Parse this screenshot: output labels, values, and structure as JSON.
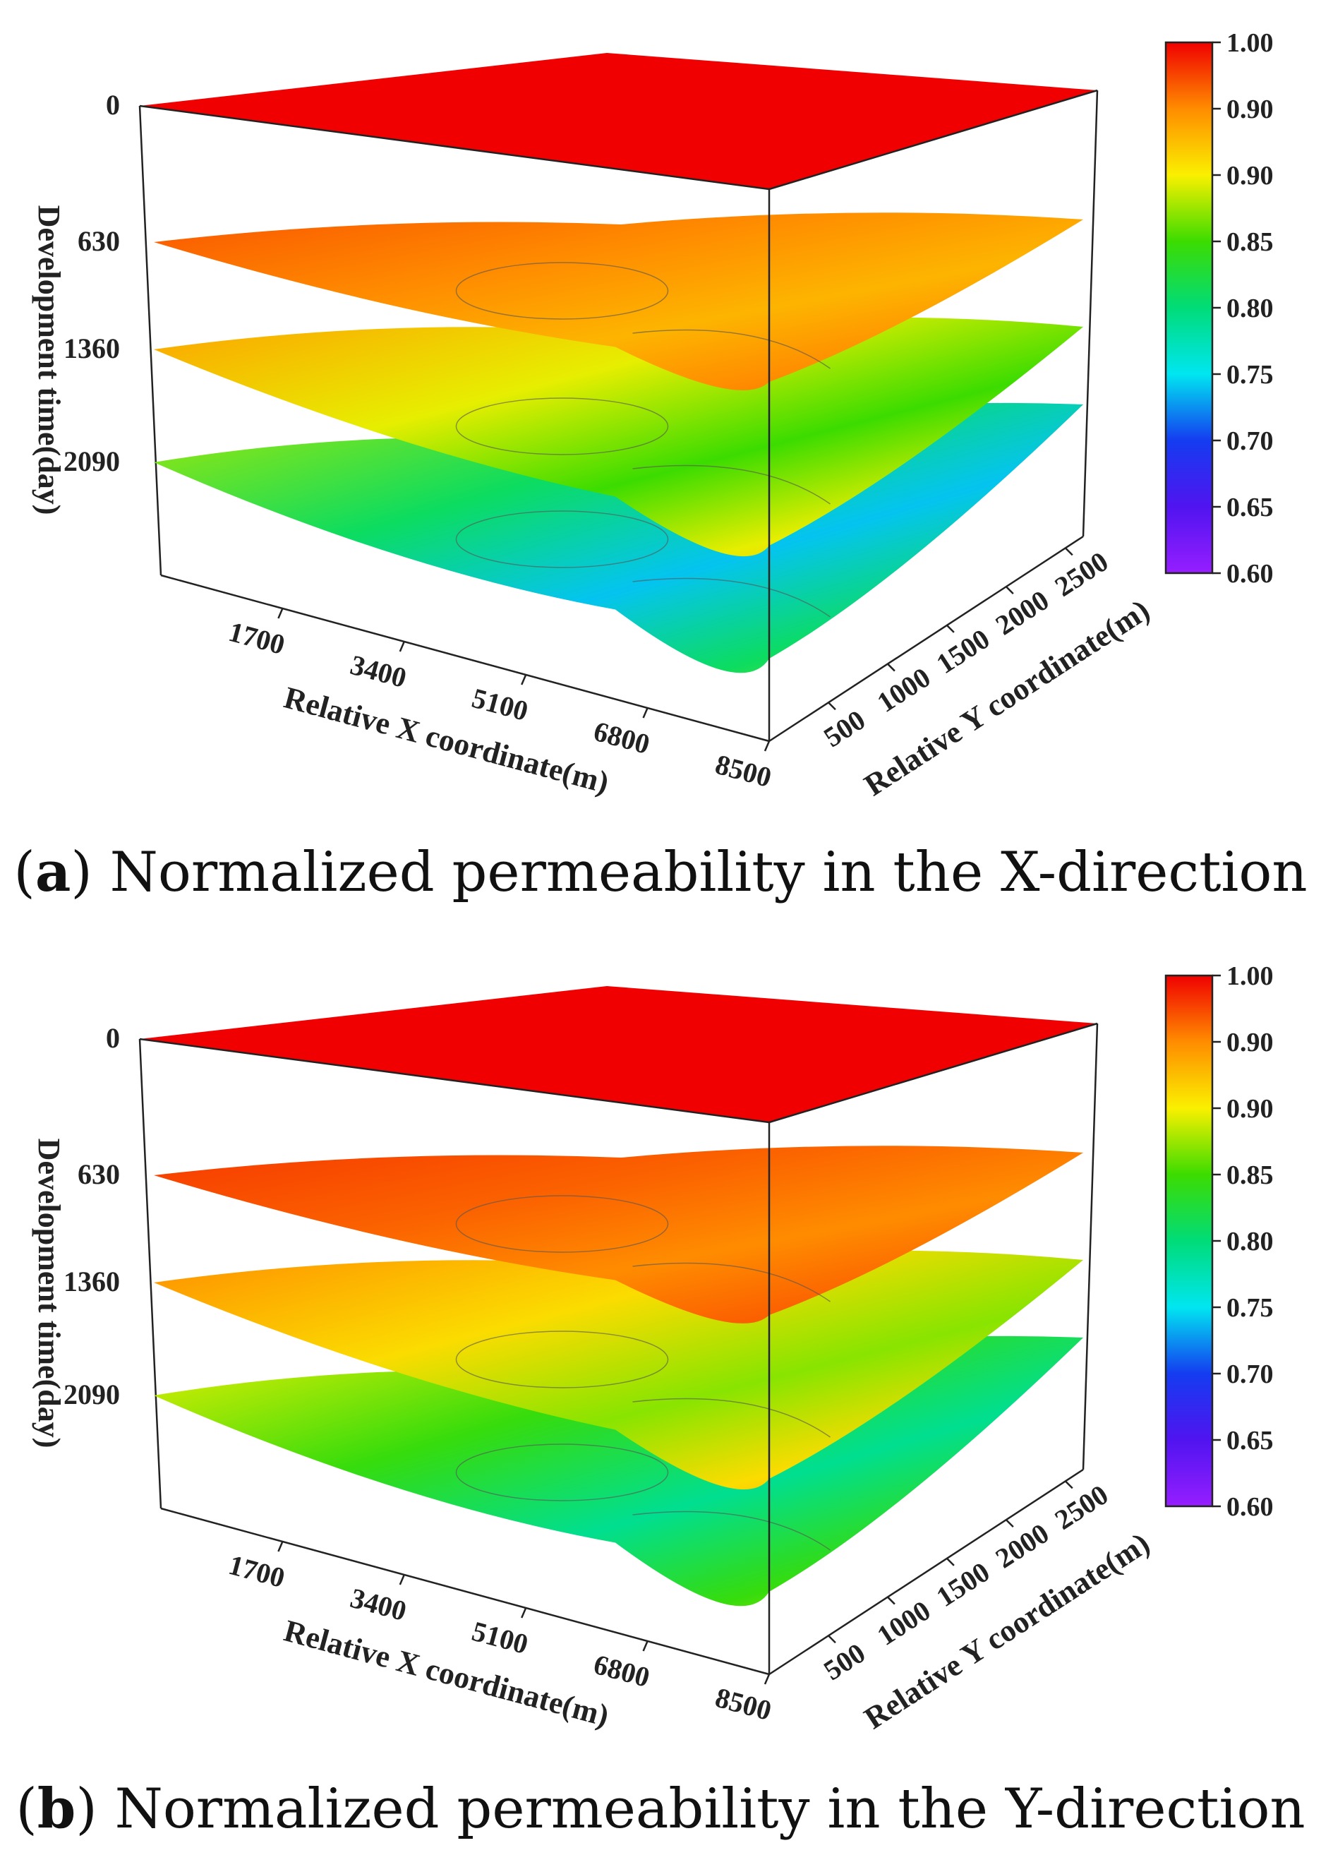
{
  "chart_data": [
    {
      "type": "surface",
      "panel_letter": "a",
      "caption": "Normalized permeability in the X-direction",
      "xlabel": "Relative X coordinate(m)",
      "ylabel": "Relative Y coordinate(m)",
      "zlabel": "Development time(day)",
      "x_ticks": [
        "1700",
        "3400",
        "5100",
        "6800",
        "8500"
      ],
      "y_ticks": [
        "500",
        "1000",
        "1500",
        "2000",
        "2500"
      ],
      "z_ticks": [
        "0",
        "630",
        "1360",
        "2090"
      ],
      "xlim": [
        0,
        8500
      ],
      "ylim": [
        0,
        2500
      ],
      "colorbar": {
        "range": [
          0.6,
          1.0
        ],
        "labels": [
          "1.00",
          "0.90",
          "0.90",
          "0.85",
          "0.80",
          "0.75",
          "0.70",
          "0.65",
          "0.60"
        ]
      },
      "series": [
        {
          "time": 0,
          "value_range": [
            1.0,
            1.0
          ]
        },
        {
          "time": 630,
          "value_range": [
            0.93,
            0.97
          ]
        },
        {
          "time": 1360,
          "value_range": [
            0.85,
            0.94
          ]
        },
        {
          "time": 2090,
          "value_range": [
            0.74,
            0.88
          ]
        }
      ]
    },
    {
      "type": "surface",
      "panel_letter": "b",
      "caption": "Normalized permeability in the Y-direction",
      "xlabel": "Relative X coordinate(m)",
      "ylabel": "Relative Y coordinate(m)",
      "zlabel": "Development time(day)",
      "x_ticks": [
        "1700",
        "3400",
        "5100",
        "6800",
        "8500"
      ],
      "y_ticks": [
        "500",
        "1000",
        "1500",
        "2000",
        "2500"
      ],
      "z_ticks": [
        "0",
        "630",
        "1360",
        "2090"
      ],
      "xlim": [
        0,
        8500
      ],
      "ylim": [
        0,
        2500
      ],
      "colorbar": {
        "range": [
          0.6,
          1.0
        ],
        "labels": [
          "1.00",
          "0.90",
          "0.90",
          "0.85",
          "0.80",
          "0.75",
          "0.70",
          "0.65",
          "0.60"
        ]
      },
      "series": [
        {
          "time": 0,
          "value_range": [
            1.0,
            1.0
          ]
        },
        {
          "time": 630,
          "value_range": [
            0.95,
            0.98
          ]
        },
        {
          "time": 1360,
          "value_range": [
            0.87,
            0.95
          ]
        },
        {
          "time": 2090,
          "value_range": [
            0.79,
            0.9
          ]
        }
      ]
    }
  ]
}
